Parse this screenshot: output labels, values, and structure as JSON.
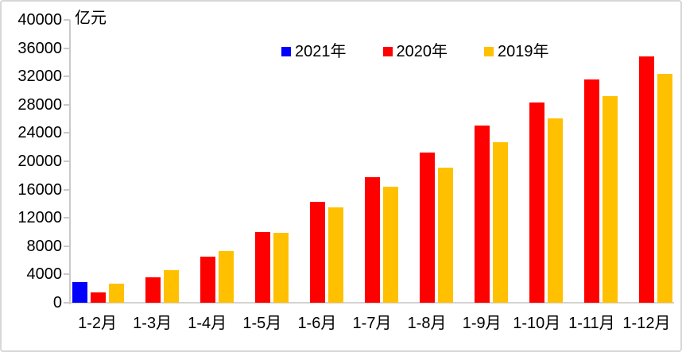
{
  "chart_data": {
    "type": "bar",
    "title": "",
    "unit_label": "亿元",
    "xlabel": "",
    "ylabel": "亿元",
    "categories": [
      "1-2月",
      "1-3月",
      "1-4月",
      "1-5月",
      "1-6月",
      "1-7月",
      "1-8月",
      "1-9月",
      "1-10月",
      "1-11月",
      "1-12月"
    ],
    "series": [
      {
        "name": "2021年",
        "color": "#0000FF",
        "values": [
          2900,
          null,
          null,
          null,
          null,
          null,
          null,
          null,
          null,
          null,
          null
        ]
      },
      {
        "name": "2020年",
        "color": "#FF0000",
        "values": [
          1500,
          3600,
          6500,
          10000,
          14300,
          17800,
          21200,
          25100,
          28300,
          31600,
          34800
        ]
      },
      {
        "name": "2019年",
        "color": "#FFC000",
        "values": [
          2650,
          4600,
          7250,
          9900,
          13500,
          16400,
          19100,
          22700,
          26100,
          29200,
          32400
        ]
      }
    ],
    "ylim": [
      0,
      40000
    ],
    "ytick_step": 4000,
    "ytick_labels": [
      "0",
      "4000",
      "8000",
      "12000",
      "16000",
      "20000",
      "24000",
      "28000",
      "32000",
      "36000",
      "40000"
    ],
    "grid": false,
    "legend_position": "top-center",
    "axis_color": "#C9C9C9",
    "baseline_color": "#D3D3D3",
    "text_color": "#000000"
  }
}
